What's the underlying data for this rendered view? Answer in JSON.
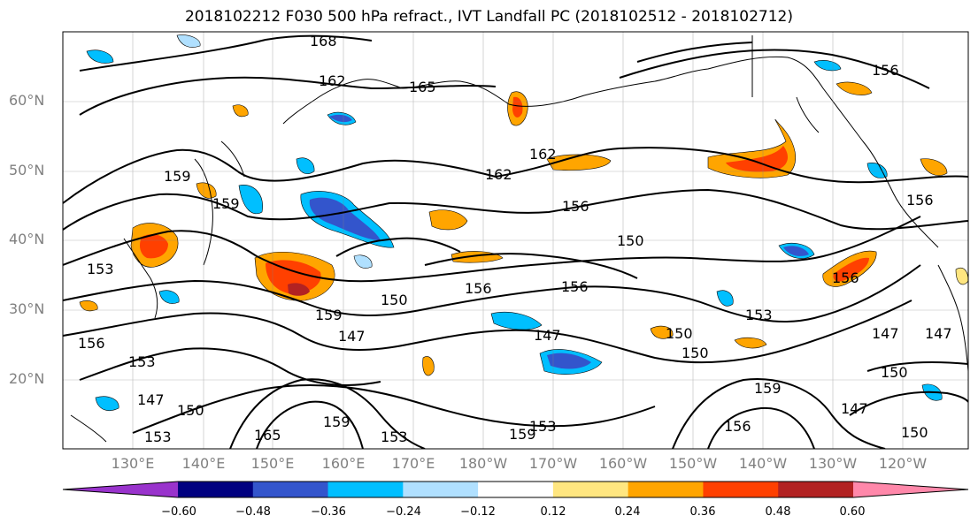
{
  "title": "2018102212 F030 500 hPa refract., IVT Landfall PC (2018102512 - 2018102712)",
  "map": {
    "lat_ticks": [
      "60°N",
      "50°N",
      "40°N",
      "30°N",
      "20°N"
    ],
    "lon_ticks": [
      "130°E",
      "140°E",
      "150°E",
      "160°E",
      "170°E",
      "180°W",
      "170°W",
      "160°W",
      "150°W",
      "140°W",
      "130°W",
      "120°W"
    ],
    "contour_labels": [
      {
        "text": "168"
      },
      {
        "text": "162"
      },
      {
        "text": "165"
      },
      {
        "text": "156"
      },
      {
        "text": "159"
      },
      {
        "text": "159"
      },
      {
        "text": "153"
      },
      {
        "text": "162"
      },
      {
        "text": "162"
      },
      {
        "text": "156"
      },
      {
        "text": "150"
      },
      {
        "text": "156"
      },
      {
        "text": "150"
      },
      {
        "text": "159"
      },
      {
        "text": "147"
      },
      {
        "text": "156"
      },
      {
        "text": "153"
      },
      {
        "text": "147"
      },
      {
        "text": "150"
      },
      {
        "text": "153"
      },
      {
        "text": "165"
      },
      {
        "text": "159"
      },
      {
        "text": "153"
      },
      {
        "text": "159"
      },
      {
        "text": "153"
      },
      {
        "text": "147"
      },
      {
        "text": "150"
      },
      {
        "text": "150"
      },
      {
        "text": "153"
      },
      {
        "text": "156"
      },
      {
        "text": "159"
      },
      {
        "text": "156"
      },
      {
        "text": "147"
      },
      {
        "text": "150"
      },
      {
        "text": "147"
      },
      {
        "text": "150"
      },
      {
        "text": "156"
      },
      {
        "text": "156"
      },
      {
        "text": "147"
      }
    ]
  },
  "colorbar": {
    "colors": [
      "#9933cc",
      "#000080",
      "#3355cc",
      "#00bfff",
      "#b0e0ff",
      "#ffffff",
      "#ffe680",
      "#ffa500",
      "#ff4000",
      "#b22222",
      "#ff88aa"
    ],
    "tick_labels": [
      "−0.60",
      "−0.48",
      "−0.36",
      "−0.24",
      "−0.12",
      "0.12",
      "0.24",
      "0.36",
      "0.48",
      "0.60"
    ]
  }
}
